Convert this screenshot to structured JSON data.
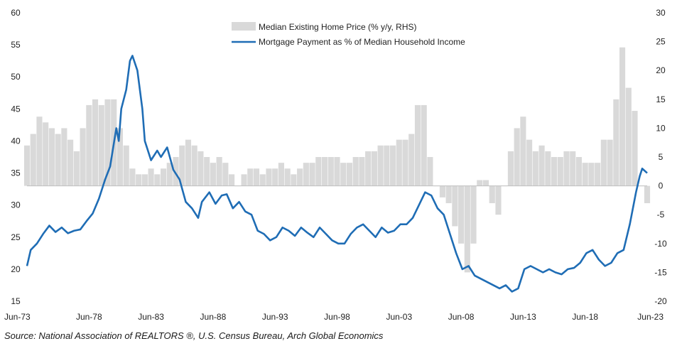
{
  "chart_data": {
    "type": "bar+line",
    "title": "",
    "xlabel": "",
    "x_tick_labels": [
      "Jun-73",
      "Jun-78",
      "Jun-83",
      "Jun-88",
      "Jun-93",
      "Jun-98",
      "Jun-03",
      "Jun-08",
      "Jun-13",
      "Jun-18",
      "Jun-23"
    ],
    "x_range": [
      1973.5,
      2023.5
    ],
    "left_axis": {
      "ylim": [
        15,
        60
      ],
      "ticks": [
        15,
        20,
        25,
        30,
        35,
        40,
        45,
        50,
        55,
        60
      ]
    },
    "right_axis": {
      "ylim": [
        -20,
        30
      ],
      "ticks": [
        -20,
        -15,
        -10,
        -5,
        0,
        5,
        10,
        15,
        20,
        25,
        30
      ]
    },
    "grid": false,
    "legend_position": "top-center",
    "series": [
      {
        "name": "Median Existing Home Price (% y/y, RHS)",
        "type": "bar",
        "axis": "right",
        "color": "#d9d9d9",
        "points": [
          [
            1973.5,
            7
          ],
          [
            1974.0,
            9
          ],
          [
            1974.5,
            12
          ],
          [
            1975.0,
            11
          ],
          [
            1975.5,
            10
          ],
          [
            1976.0,
            9
          ],
          [
            1976.5,
            10
          ],
          [
            1977.0,
            8
          ],
          [
            1977.5,
            6
          ],
          [
            1978.0,
            10
          ],
          [
            1978.5,
            14
          ],
          [
            1979.0,
            15
          ],
          [
            1979.5,
            14
          ],
          [
            1980.0,
            15
          ],
          [
            1980.5,
            15
          ],
          [
            1981.0,
            10
          ],
          [
            1981.5,
            7
          ],
          [
            1982.0,
            3
          ],
          [
            1982.5,
            2
          ],
          [
            1983.0,
            2
          ],
          [
            1983.5,
            3
          ],
          [
            1984.0,
            2
          ],
          [
            1984.5,
            3
          ],
          [
            1985.0,
            4
          ],
          [
            1985.5,
            5
          ],
          [
            1986.0,
            7
          ],
          [
            1986.5,
            8
          ],
          [
            1987.0,
            7
          ],
          [
            1987.5,
            6
          ],
          [
            1988.0,
            5
          ],
          [
            1988.5,
            4
          ],
          [
            1989.0,
            5
          ],
          [
            1989.5,
            4
          ],
          [
            1990.0,
            2
          ],
          [
            1990.5,
            0
          ],
          [
            1991.0,
            2
          ],
          [
            1991.5,
            3
          ],
          [
            1992.0,
            3
          ],
          [
            1992.5,
            2
          ],
          [
            1993.0,
            3
          ],
          [
            1993.5,
            3
          ],
          [
            1994.0,
            4
          ],
          [
            1994.5,
            3
          ],
          [
            1995.0,
            2
          ],
          [
            1995.5,
            3
          ],
          [
            1996.0,
            4
          ],
          [
            1996.5,
            4
          ],
          [
            1997.0,
            5
          ],
          [
            1997.5,
            5
          ],
          [
            1998.0,
            5
          ],
          [
            1998.5,
            5
          ],
          [
            1999.0,
            4
          ],
          [
            1999.5,
            4
          ],
          [
            2000.0,
            5
          ],
          [
            2000.5,
            5
          ],
          [
            2001.0,
            6
          ],
          [
            2001.5,
            6
          ],
          [
            2002.0,
            7
          ],
          [
            2002.5,
            7
          ],
          [
            2003.0,
            7
          ],
          [
            2003.5,
            8
          ],
          [
            2004.0,
            8
          ],
          [
            2004.5,
            9
          ],
          [
            2005.0,
            14
          ],
          [
            2005.5,
            14
          ],
          [
            2006.0,
            5
          ],
          [
            2006.5,
            0
          ],
          [
            2007.0,
            -2
          ],
          [
            2007.5,
            -3
          ],
          [
            2008.0,
            -7
          ],
          [
            2008.5,
            -10
          ],
          [
            2009.0,
            -15
          ],
          [
            2009.5,
            -10
          ],
          [
            2010.0,
            1
          ],
          [
            2010.5,
            1
          ],
          [
            2011.0,
            -3
          ],
          [
            2011.5,
            -5
          ],
          [
            2012.0,
            0
          ],
          [
            2012.5,
            6
          ],
          [
            2013.0,
            10
          ],
          [
            2013.5,
            12
          ],
          [
            2014.0,
            8
          ],
          [
            2014.5,
            6
          ],
          [
            2015.0,
            7
          ],
          [
            2015.5,
            6
          ],
          [
            2016.0,
            5
          ],
          [
            2016.5,
            5
          ],
          [
            2017.0,
            6
          ],
          [
            2017.5,
            6
          ],
          [
            2018.0,
            5
          ],
          [
            2018.5,
            4
          ],
          [
            2019.0,
            4
          ],
          [
            2019.5,
            4
          ],
          [
            2020.0,
            8
          ],
          [
            2020.5,
            8
          ],
          [
            2021.0,
            15
          ],
          [
            2021.5,
            24
          ],
          [
            2022.0,
            17
          ],
          [
            2022.5,
            13
          ],
          [
            2023.0,
            0
          ],
          [
            2023.5,
            -3
          ]
        ]
      },
      {
        "name": "Mortgage Payment as % of Median Household Income",
        "type": "line",
        "axis": "left",
        "color": "#1f6db5",
        "points": [
          [
            1973.5,
            20.5
          ],
          [
            1973.8,
            23.0
          ],
          [
            1974.3,
            24.0
          ],
          [
            1974.8,
            25.5
          ],
          [
            1975.3,
            26.8
          ],
          [
            1975.8,
            25.8
          ],
          [
            1976.3,
            26.5
          ],
          [
            1976.8,
            25.6
          ],
          [
            1977.3,
            26.0
          ],
          [
            1977.8,
            26.2
          ],
          [
            1978.3,
            27.5
          ],
          [
            1978.8,
            28.7
          ],
          [
            1979.3,
            31.0
          ],
          [
            1979.8,
            34.0
          ],
          [
            1980.2,
            36.0
          ],
          [
            1980.7,
            42.0
          ],
          [
            1980.9,
            40.0
          ],
          [
            1981.1,
            45.0
          ],
          [
            1981.5,
            48.0
          ],
          [
            1981.8,
            52.5
          ],
          [
            1982.0,
            53.3
          ],
          [
            1982.4,
            51.0
          ],
          [
            1982.8,
            45.0
          ],
          [
            1983.0,
            40.0
          ],
          [
            1983.5,
            37.0
          ],
          [
            1984.0,
            38.5
          ],
          [
            1984.3,
            37.5
          ],
          [
            1984.8,
            39.0
          ],
          [
            1985.3,
            35.5
          ],
          [
            1985.8,
            34.0
          ],
          [
            1986.3,
            30.5
          ],
          [
            1986.8,
            29.5
          ],
          [
            1987.3,
            28.0
          ],
          [
            1987.6,
            30.5
          ],
          [
            1988.2,
            32.0
          ],
          [
            1988.7,
            30.2
          ],
          [
            1989.2,
            31.5
          ],
          [
            1989.6,
            31.7
          ],
          [
            1990.1,
            29.5
          ],
          [
            1990.6,
            30.5
          ],
          [
            1991.1,
            29.0
          ],
          [
            1991.6,
            28.5
          ],
          [
            1992.1,
            26.0
          ],
          [
            1992.6,
            25.5
          ],
          [
            1993.1,
            24.5
          ],
          [
            1993.6,
            25.0
          ],
          [
            1994.1,
            26.5
          ],
          [
            1994.6,
            26.0
          ],
          [
            1995.1,
            25.2
          ],
          [
            1995.6,
            26.5
          ],
          [
            1996.1,
            25.7
          ],
          [
            1996.6,
            25.0
          ],
          [
            1997.1,
            26.5
          ],
          [
            1997.6,
            25.5
          ],
          [
            1998.1,
            24.5
          ],
          [
            1998.6,
            24.0
          ],
          [
            1999.1,
            24.0
          ],
          [
            1999.6,
            25.5
          ],
          [
            2000.1,
            26.5
          ],
          [
            2000.6,
            27.0
          ],
          [
            2001.1,
            26.0
          ],
          [
            2001.6,
            25.0
          ],
          [
            2002.1,
            26.5
          ],
          [
            2002.6,
            25.7
          ],
          [
            2003.1,
            26.0
          ],
          [
            2003.6,
            27.0
          ],
          [
            2004.1,
            27.0
          ],
          [
            2004.6,
            28.0
          ],
          [
            2005.1,
            30.0
          ],
          [
            2005.6,
            32.0
          ],
          [
            2006.1,
            31.5
          ],
          [
            2006.6,
            29.5
          ],
          [
            2007.1,
            28.5
          ],
          [
            2007.6,
            25.5
          ],
          [
            2008.1,
            22.5
          ],
          [
            2008.6,
            20.0
          ],
          [
            2009.1,
            20.5
          ],
          [
            2009.6,
            19.0
          ],
          [
            2010.1,
            18.5
          ],
          [
            2010.6,
            18.0
          ],
          [
            2011.1,
            17.5
          ],
          [
            2011.6,
            17.0
          ],
          [
            2012.1,
            17.5
          ],
          [
            2012.6,
            16.5
          ],
          [
            2013.1,
            17.0
          ],
          [
            2013.6,
            20.0
          ],
          [
            2014.1,
            20.5
          ],
          [
            2014.6,
            20.0
          ],
          [
            2015.1,
            19.5
          ],
          [
            2015.6,
            20.0
          ],
          [
            2016.1,
            19.5
          ],
          [
            2016.6,
            19.2
          ],
          [
            2017.1,
            20.0
          ],
          [
            2017.6,
            20.2
          ],
          [
            2018.1,
            21.0
          ],
          [
            2018.6,
            22.5
          ],
          [
            2019.1,
            23.0
          ],
          [
            2019.6,
            21.5
          ],
          [
            2020.1,
            20.5
          ],
          [
            2020.6,
            21.0
          ],
          [
            2021.1,
            22.5
          ],
          [
            2021.6,
            23.0
          ],
          [
            2022.1,
            27.0
          ],
          [
            2022.6,
            32.0
          ],
          [
            2022.9,
            34.5
          ],
          [
            2023.1,
            35.7
          ],
          [
            2023.5,
            35.0
          ]
        ]
      }
    ]
  },
  "legend": {
    "bar_label": "Median Existing Home Price (% y/y, RHS)",
    "line_label": "Mortgage Payment as % of Median Household Income"
  },
  "source": "Source: National Association of REALTORS ®, U.S. Census Bureau, Arch Global Economics"
}
